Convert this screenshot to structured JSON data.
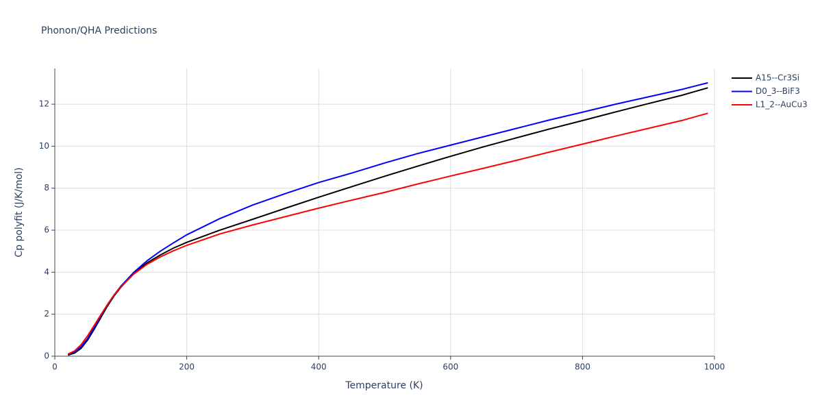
{
  "chart_data": {
    "type": "line",
    "title": "Phonon/QHA Predictions",
    "x_label": "Temperature (K)",
    "y_label": "Cp polyfit (J/K/mol)",
    "x": [
      20,
      30,
      40,
      50,
      60,
      70,
      80,
      90,
      100,
      120,
      140,
      160,
      180,
      200,
      250,
      300,
      350,
      400,
      450,
      500,
      550,
      600,
      650,
      700,
      750,
      800,
      850,
      900,
      950,
      990
    ],
    "series": [
      {
        "name": "A15--Cr3Si",
        "color": "#000000",
        "values": [
          0.05,
          0.15,
          0.38,
          0.78,
          1.3,
          1.85,
          2.4,
          2.88,
          3.28,
          3.95,
          4.45,
          4.82,
          5.15,
          5.42,
          6.0,
          6.52,
          7.05,
          7.57,
          8.07,
          8.57,
          9.05,
          9.52,
          9.97,
          10.4,
          10.82,
          11.22,
          11.63,
          12.03,
          12.42,
          12.78
        ]
      },
      {
        "name": "D0_3--BiF3",
        "color": "#0000ff",
        "values": [
          0.08,
          0.2,
          0.45,
          0.85,
          1.38,
          1.92,
          2.45,
          2.92,
          3.33,
          4.0,
          4.55,
          5.0,
          5.4,
          5.78,
          6.55,
          7.2,
          7.75,
          8.27,
          8.72,
          9.2,
          9.65,
          10.05,
          10.45,
          10.85,
          11.25,
          11.62,
          12.0,
          12.35,
          12.7,
          13.02
        ]
      },
      {
        "name": "L1_2--AuCu3",
        "color": "#ff0000",
        "values": [
          0.1,
          0.25,
          0.55,
          0.98,
          1.48,
          1.98,
          2.47,
          2.92,
          3.3,
          3.92,
          4.38,
          4.73,
          5.02,
          5.28,
          5.82,
          6.25,
          6.65,
          7.05,
          7.43,
          7.8,
          8.2,
          8.58,
          8.95,
          9.33,
          9.72,
          10.1,
          10.48,
          10.85,
          11.22,
          11.57
        ]
      }
    ],
    "xlim": [
      0,
      1000
    ],
    "xticks": [
      0,
      200,
      400,
      600,
      800,
      1000
    ],
    "ylim": [
      0,
      13.7
    ],
    "yticks": [
      0,
      2,
      4,
      6,
      8,
      10,
      12
    ],
    "grid": true
  }
}
